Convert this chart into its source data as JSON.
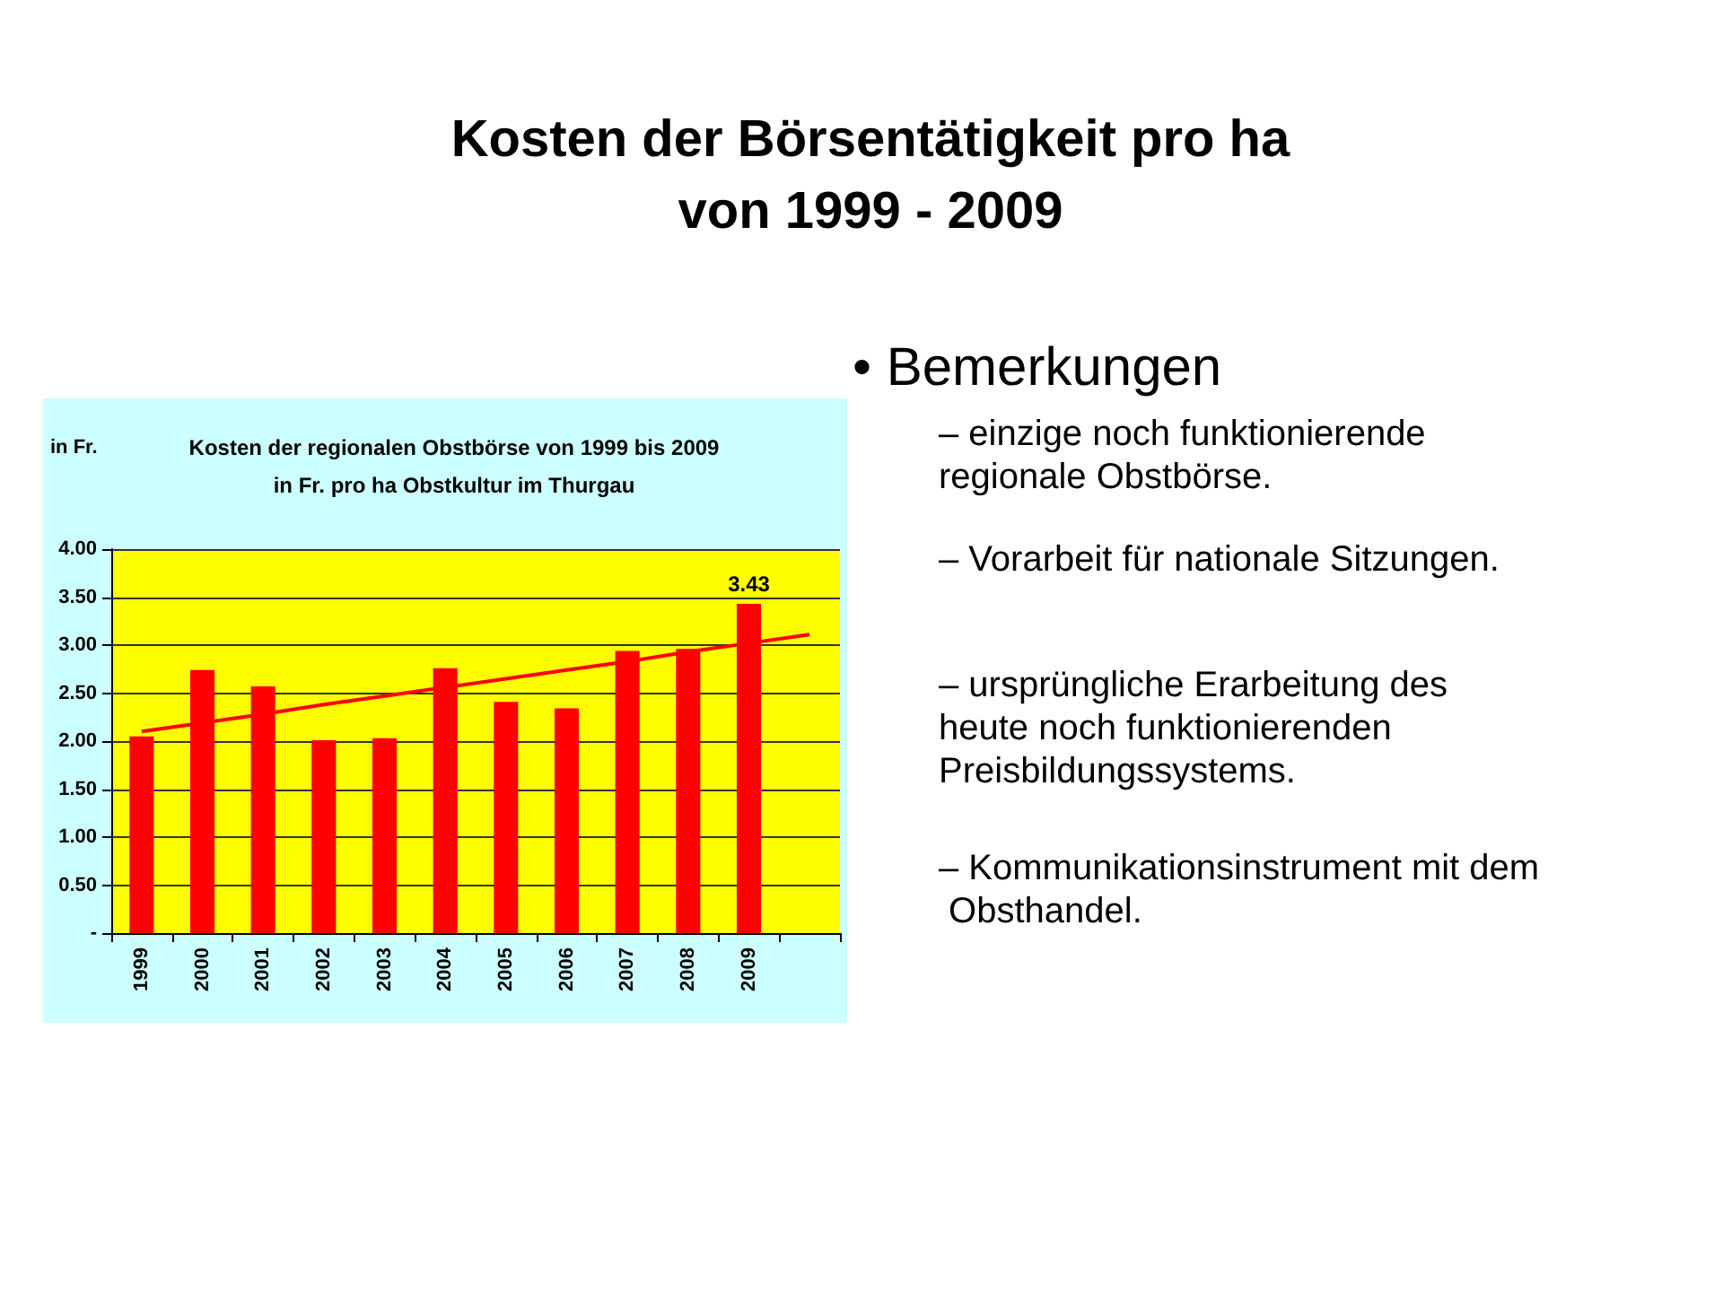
{
  "chart_data": {
    "type": "bar",
    "title": "Kosten der Börsentätigkeit pro ha\nvon 1999 - 2009",
    "subtitle": "Kosten der regionalen Obstbörse von 1999 bis 2009\nin Fr. pro ha Obstkultur im Thurgau",
    "ylabel": "in Fr.",
    "categories": [
      "1999",
      "2000",
      "2001",
      "2002",
      "2003",
      "2004",
      "2005",
      "2006",
      "2007",
      "2008",
      "2009",
      null
    ],
    "series": [
      {
        "color": "#ff0000",
        "values": [
          2.05,
          2.74,
          2.57,
          2.01,
          2.03,
          2.76,
          2.41,
          2.34,
          2.94,
          2.96,
          3.43,
          null
        ],
        "value_labels": [
          null,
          null,
          null,
          null,
          null,
          null,
          null,
          null,
          null,
          null,
          "3.43",
          null
        ]
      },
      {
        "type": "line",
        "color": "#ff0000",
        "marker": "none",
        "values": [
          2.1,
          2.19,
          2.28,
          2.38,
          2.47,
          2.56,
          2.65,
          2.74,
          2.83,
          2.93,
          3.02,
          3.11
        ]
      }
    ],
    "ylim": [
      0,
      4
    ],
    "yticks": [
      {
        "value": 0,
        "label": "-"
      },
      {
        "value": 0.5,
        "label": "0.50"
      },
      {
        "value": 1,
        "label": "1.00"
      },
      {
        "value": 1.5,
        "label": "1.50"
      },
      {
        "value": 2,
        "label": "2.00"
      },
      {
        "value": 2.5,
        "label": "2.50"
      },
      {
        "value": 3,
        "label": "3.00"
      },
      {
        "value": 3.5,
        "label": "3.50"
      },
      {
        "value": 4,
        "label": "4.00"
      }
    ],
    "grid": "y",
    "annotations": [
      "• Bemerkungen",
      "– einzige noch funktionierende regionale Obstbörse.",
      "– Vorarbeit für nationale Sitzungen.",
      "– ursprüngliche Erarbeitung des heute noch funktionierenden Preisbildungssystems.",
      "– Kommunikationsinstrument mit dem Obsthandel."
    ]
  }
}
